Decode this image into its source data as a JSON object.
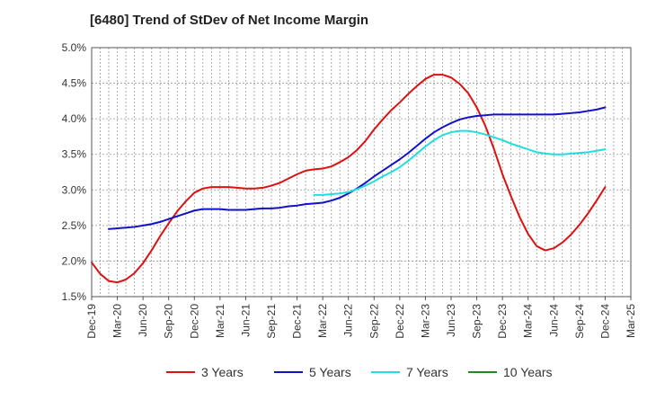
{
  "chart_data": {
    "type": "line",
    "title": "[6480]  Trend of StDev of Net Income Margin",
    "xlabel": "",
    "ylabel": "",
    "ylim": [
      1.5,
      5.0
    ],
    "y_ticks": [
      "1.5%",
      "2.0%",
      "2.5%",
      "3.0%",
      "3.5%",
      "4.0%",
      "4.5%",
      "5.0%"
    ],
    "x_tick_labels": [
      "Dec-19",
      "Mar-20",
      "Jun-20",
      "Sep-20",
      "Dec-20",
      "Mar-21",
      "Jun-21",
      "Sep-21",
      "Dec-21",
      "Mar-22",
      "Jun-22",
      "Sep-22",
      "Dec-22",
      "Mar-23",
      "Jun-23",
      "Sep-23",
      "Dec-23",
      "Mar-24",
      "Jun-24",
      "Sep-24",
      "Dec-24",
      "Mar-25"
    ],
    "grid": true,
    "legend_position": "bottom",
    "series": [
      {
        "name": "3 Years",
        "color": "#dd1111",
        "values": [
          [
            "Dec-19",
            1.98
          ],
          [
            "Jan-20",
            1.82
          ],
          [
            "Feb-20",
            1.72
          ],
          [
            "Mar-20",
            1.7
          ],
          [
            "Apr-20",
            1.74
          ],
          [
            "May-20",
            1.83
          ],
          [
            "Jun-20",
            1.97
          ],
          [
            "Jul-20",
            2.15
          ],
          [
            "Aug-20",
            2.35
          ],
          [
            "Sep-20",
            2.53
          ],
          [
            "Oct-20",
            2.7
          ],
          [
            "Nov-20",
            2.84
          ],
          [
            "Dec-20",
            2.96
          ],
          [
            "Jan-21",
            3.02
          ],
          [
            "Feb-21",
            3.04
          ],
          [
            "Mar-21",
            3.04
          ],
          [
            "Apr-21",
            3.04
          ],
          [
            "May-21",
            3.03
          ],
          [
            "Jun-21",
            3.02
          ],
          [
            "Jul-21",
            3.02
          ],
          [
            "Aug-21",
            3.03
          ],
          [
            "Sep-21",
            3.06
          ],
          [
            "Oct-21",
            3.1
          ],
          [
            "Nov-21",
            3.16
          ],
          [
            "Dec-21",
            3.22
          ],
          [
            "Jan-22",
            3.27
          ],
          [
            "Feb-22",
            3.29
          ],
          [
            "Mar-22",
            3.3
          ],
          [
            "Apr-22",
            3.33
          ],
          [
            "May-22",
            3.39
          ],
          [
            "Jun-22",
            3.46
          ],
          [
            "Jul-22",
            3.56
          ],
          [
            "Aug-22",
            3.69
          ],
          [
            "Sep-22",
            3.85
          ],
          [
            "Oct-22",
            3.99
          ],
          [
            "Nov-22",
            4.12
          ],
          [
            "Dec-22",
            4.23
          ],
          [
            "Jan-23",
            4.35
          ],
          [
            "Feb-23",
            4.46
          ],
          [
            "Mar-23",
            4.56
          ],
          [
            "Apr-23",
            4.62
          ],
          [
            "May-23",
            4.62
          ],
          [
            "Jun-23",
            4.58
          ],
          [
            "Jul-23",
            4.49
          ],
          [
            "Aug-23",
            4.36
          ],
          [
            "Sep-23",
            4.16
          ],
          [
            "Oct-23",
            3.9
          ],
          [
            "Nov-23",
            3.58
          ],
          [
            "Dec-23",
            3.22
          ],
          [
            "Jan-24",
            2.91
          ],
          [
            "Feb-24",
            2.62
          ],
          [
            "Mar-24",
            2.38
          ],
          [
            "Apr-24",
            2.21
          ],
          [
            "May-24",
            2.15
          ],
          [
            "Jun-24",
            2.18
          ],
          [
            "Jul-24",
            2.26
          ],
          [
            "Aug-24",
            2.37
          ],
          [
            "Sep-24",
            2.51
          ],
          [
            "Oct-24",
            2.67
          ],
          [
            "Nov-24",
            2.85
          ],
          [
            "Dec-24",
            3.04
          ]
        ]
      },
      {
        "name": "5 Years",
        "color": "#1111cc",
        "values": [
          [
            "Feb-20",
            2.45
          ],
          [
            "Mar-20",
            2.46
          ],
          [
            "Apr-20",
            2.47
          ],
          [
            "May-20",
            2.48
          ],
          [
            "Jun-20",
            2.5
          ],
          [
            "Jul-20",
            2.52
          ],
          [
            "Aug-20",
            2.55
          ],
          [
            "Sep-20",
            2.59
          ],
          [
            "Oct-20",
            2.63
          ],
          [
            "Nov-20",
            2.67
          ],
          [
            "Dec-20",
            2.71
          ],
          [
            "Jan-21",
            2.73
          ],
          [
            "Feb-21",
            2.73
          ],
          [
            "Mar-21",
            2.73
          ],
          [
            "Apr-21",
            2.72
          ],
          [
            "May-21",
            2.72
          ],
          [
            "Jun-21",
            2.72
          ],
          [
            "Jul-21",
            2.73
          ],
          [
            "Aug-21",
            2.74
          ],
          [
            "Sep-21",
            2.74
          ],
          [
            "Oct-21",
            2.75
          ],
          [
            "Nov-21",
            2.77
          ],
          [
            "Dec-21",
            2.78
          ],
          [
            "Jan-22",
            2.8
          ],
          [
            "Feb-22",
            2.81
          ],
          [
            "Mar-22",
            2.82
          ],
          [
            "Apr-22",
            2.85
          ],
          [
            "May-22",
            2.89
          ],
          [
            "Jun-22",
            2.95
          ],
          [
            "Jul-22",
            3.02
          ],
          [
            "Aug-22",
            3.1
          ],
          [
            "Sep-22",
            3.19
          ],
          [
            "Oct-22",
            3.27
          ],
          [
            "Nov-22",
            3.35
          ],
          [
            "Dec-22",
            3.43
          ],
          [
            "Jan-23",
            3.52
          ],
          [
            "Feb-23",
            3.62
          ],
          [
            "Mar-23",
            3.72
          ],
          [
            "Apr-23",
            3.81
          ],
          [
            "May-23",
            3.88
          ],
          [
            "Jun-23",
            3.94
          ],
          [
            "Jul-23",
            3.99
          ],
          [
            "Aug-23",
            4.02
          ],
          [
            "Sep-23",
            4.04
          ],
          [
            "Oct-23",
            4.05
          ],
          [
            "Nov-23",
            4.06
          ],
          [
            "Dec-23",
            4.06
          ],
          [
            "Jan-24",
            4.06
          ],
          [
            "Feb-24",
            4.06
          ],
          [
            "Mar-24",
            4.06
          ],
          [
            "Apr-24",
            4.06
          ],
          [
            "May-24",
            4.06
          ],
          [
            "Jun-24",
            4.06
          ],
          [
            "Jul-24",
            4.07
          ],
          [
            "Aug-24",
            4.08
          ],
          [
            "Sep-24",
            4.09
          ],
          [
            "Oct-24",
            4.11
          ],
          [
            "Nov-24",
            4.13
          ],
          [
            "Dec-24",
            4.16
          ]
        ]
      },
      {
        "name": "7 Years",
        "color": "#22dddd",
        "values": [
          [
            "Feb-22",
            2.93
          ],
          [
            "Mar-22",
            2.93
          ],
          [
            "Apr-22",
            2.94
          ],
          [
            "May-22",
            2.95
          ],
          [
            "Jun-22",
            2.97
          ],
          [
            "Jul-22",
            3.01
          ],
          [
            "Aug-22",
            3.06
          ],
          [
            "Sep-22",
            3.12
          ],
          [
            "Oct-22",
            3.19
          ],
          [
            "Nov-22",
            3.25
          ],
          [
            "Dec-22",
            3.32
          ],
          [
            "Jan-23",
            3.41
          ],
          [
            "Feb-23",
            3.51
          ],
          [
            "Mar-23",
            3.61
          ],
          [
            "Apr-23",
            3.7
          ],
          [
            "May-23",
            3.77
          ],
          [
            "Jun-23",
            3.81
          ],
          [
            "Jul-23",
            3.83
          ],
          [
            "Aug-23",
            3.83
          ],
          [
            "Sep-23",
            3.81
          ],
          [
            "Oct-23",
            3.78
          ],
          [
            "Nov-23",
            3.74
          ],
          [
            "Dec-23",
            3.7
          ],
          [
            "Jan-24",
            3.65
          ],
          [
            "Feb-24",
            3.61
          ],
          [
            "Mar-24",
            3.57
          ],
          [
            "Apr-24",
            3.53
          ],
          [
            "May-24",
            3.51
          ],
          [
            "Jun-24",
            3.5
          ],
          [
            "Jul-24",
            3.5
          ],
          [
            "Aug-24",
            3.51
          ],
          [
            "Sep-24",
            3.52
          ],
          [
            "Oct-24",
            3.53
          ],
          [
            "Nov-24",
            3.55
          ],
          [
            "Dec-24",
            3.57
          ]
        ]
      },
      {
        "name": "10 Years",
        "color": "#228822",
        "values": []
      }
    ]
  }
}
